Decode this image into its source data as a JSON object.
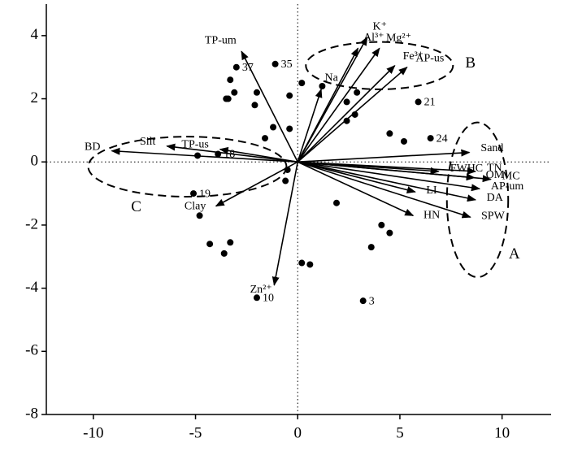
{
  "chart_data": {
    "type": "biplot",
    "xlim": [
      -12.3,
      12.4
    ],
    "ylim": [
      -8,
      5
    ],
    "xticks": [
      -10,
      -5,
      0,
      5,
      10
    ],
    "yticks": [
      -8,
      -6,
      -4,
      -2,
      0,
      2,
      4
    ],
    "points": {
      "labels": [
        "37",
        "35",
        "21",
        "24",
        "18",
        "19",
        "10",
        "3",
        null,
        null,
        null,
        null,
        null,
        null,
        null,
        null,
        null,
        null,
        null,
        null,
        null,
        null,
        null,
        null,
        null,
        null,
        null,
        null,
        null,
        null,
        null,
        null,
        null,
        null,
        null,
        null,
        null,
        null,
        null
      ],
      "x": [
        -3.0,
        -1.1,
        5.9,
        6.5,
        -3.9,
        -5.1,
        -2.0,
        3.2,
        -3.3,
        -3.5,
        -3.4,
        -3.1,
        -2.0,
        -2.1,
        -0.4,
        0.2,
        1.2,
        2.9,
        2.4,
        2.8,
        2.4,
        -1.2,
        -0.4,
        -1.6,
        4.5,
        5.2,
        -4.9,
        -0.5,
        -0.6,
        -4.8,
        1.9,
        4.1,
        4.5,
        3.6,
        -4.3,
        -3.3,
        -3.6,
        0.2,
        0.6
      ],
      "y": [
        3.0,
        3.1,
        1.9,
        0.75,
        0.25,
        -1.0,
        -4.3,
        -4.4,
        2.6,
        2.0,
        2.0,
        2.2,
        2.2,
        1.8,
        2.1,
        2.5,
        2.4,
        2.2,
        1.9,
        1.5,
        1.3,
        1.1,
        1.05,
        0.75,
        0.9,
        0.65,
        0.2,
        -0.25,
        -0.6,
        -1.7,
        -1.3,
        -2.0,
        -2.25,
        -2.7,
        -2.6,
        -2.55,
        -2.9,
        -3.2,
        -3.25
      ]
    },
    "vectors": {
      "names": [
        "TP-um",
        "K⁺",
        "Al³⁺",
        "Mg²⁺",
        "Fe³⁺",
        "AP-us",
        "Na",
        "Sand",
        "FWHC",
        "TN",
        "MC",
        "OM",
        "AP-um",
        "DA",
        "SPW",
        "LI",
        "HN",
        "BD",
        "Silt",
        "TP-us",
        "Clay",
        "Zn²⁺"
      ],
      "x": [
        -2.75,
        3.4,
        2.95,
        4.0,
        4.75,
        5.35,
        1.15,
        8.4,
        6.9,
        8.7,
        9.45,
        8.65,
        8.9,
        8.7,
        8.45,
        5.75,
        5.65,
        -9.1,
        -6.4,
        -3.8,
        -4.0,
        -1.15
      ],
      "y": [
        3.5,
        3.95,
        3.6,
        3.6,
        3.05,
        3.0,
        2.3,
        0.3,
        -0.3,
        -0.3,
        -0.55,
        -0.5,
        -0.85,
        -1.2,
        -1.75,
        -0.95,
        -1.7,
        0.35,
        0.5,
        0.4,
        -1.4,
        -3.9
      ]
    },
    "groups": [
      {
        "label": "A",
        "cx": 8.8,
        "cy": -1.2,
        "rx": 1.5,
        "ry": 2.45,
        "label_x": 10.6,
        "label_y": -2.95
      },
      {
        "label": "B",
        "cx": 4.0,
        "cy": 3.05,
        "rx": 3.6,
        "ry": 0.75,
        "label_x": 8.45,
        "label_y": 3.1
      },
      {
        "label": "C",
        "cx": -5.4,
        "cy": -0.15,
        "rx": 4.85,
        "ry": 0.95,
        "label_x": -7.9,
        "label_y": -1.45
      }
    ]
  }
}
